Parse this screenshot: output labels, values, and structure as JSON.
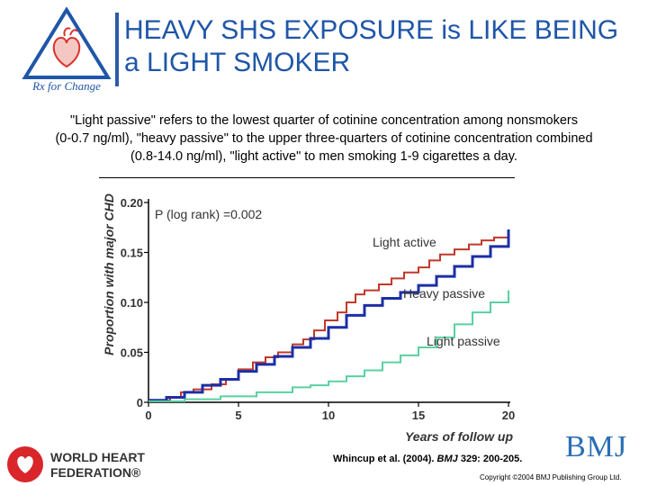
{
  "title": {
    "line1": "HEAVY SHS EXPOSURE is LIKE BEING",
    "line2": "a LIGHT SMOKER"
  },
  "logo": {
    "text": "Rx for Change",
    "icon": "heart-triangle-logo-icon",
    "color": "#1f56a8",
    "heart_color": "#d9342b"
  },
  "caption": {
    "line1": "\"Light passive\" refers to the lowest quarter of cotinine concentration among nonsmokers",
    "line2": "(0-0.7 ng/ml), \"heavy passive\" to the upper three-quarters of cotinine concentration combined",
    "line3": "(0.8-14.0 ng/ml), \"light active\" to men smoking 1-9 cigarettes a day."
  },
  "chart_data": {
    "type": "line",
    "xlabel": "Years of follow up",
    "ylabel": "Proportion with major CHD",
    "xlim": [
      0,
      20
    ],
    "ylim": [
      0,
      0.2
    ],
    "x_ticks": [
      "0",
      "5",
      "10",
      "15",
      "20"
    ],
    "y_ticks": [
      "0",
      "0.05",
      "0.10",
      "0.15",
      "0.20"
    ],
    "grid": false,
    "annotation": "P (log rank) =0.002",
    "series": [
      {
        "name": "Light active",
        "color": "#c0392b",
        "points": [
          [
            0,
            0.002
          ],
          [
            1.2,
            0.005
          ],
          [
            1.8,
            0.01
          ],
          [
            2.5,
            0.013
          ],
          [
            3.5,
            0.018
          ],
          [
            4.3,
            0.023
          ],
          [
            5,
            0.033
          ],
          [
            5.8,
            0.04
          ],
          [
            6.5,
            0.045
          ],
          [
            7.2,
            0.05
          ],
          [
            8,
            0.058
          ],
          [
            8.6,
            0.063
          ],
          [
            9.2,
            0.072
          ],
          [
            9.8,
            0.082
          ],
          [
            10.5,
            0.09
          ],
          [
            11,
            0.1
          ],
          [
            11.5,
            0.108
          ],
          [
            12,
            0.112
          ],
          [
            12.8,
            0.118
          ],
          [
            13.5,
            0.124
          ],
          [
            14.2,
            0.13
          ],
          [
            15,
            0.135
          ],
          [
            15.6,
            0.142
          ],
          [
            16.2,
            0.148
          ],
          [
            17,
            0.153
          ],
          [
            17.8,
            0.158
          ],
          [
            18.5,
            0.162
          ],
          [
            19.2,
            0.165
          ],
          [
            20,
            0.165
          ]
        ]
      },
      {
        "name": "Heavy passive",
        "color": "#1c2fa6",
        "points": [
          [
            0,
            0.002
          ],
          [
            1,
            0.005
          ],
          [
            2,
            0.01
          ],
          [
            3,
            0.017
          ],
          [
            4,
            0.023
          ],
          [
            5,
            0.031
          ],
          [
            6,
            0.038
          ],
          [
            7,
            0.046
          ],
          [
            8,
            0.055
          ],
          [
            9,
            0.064
          ],
          [
            10,
            0.075
          ],
          [
            11,
            0.087
          ],
          [
            12,
            0.097
          ],
          [
            13,
            0.104
          ],
          [
            14,
            0.11
          ],
          [
            15,
            0.117
          ],
          [
            16,
            0.126
          ],
          [
            17,
            0.136
          ],
          [
            18,
            0.146
          ],
          [
            19,
            0.156
          ],
          [
            20,
            0.173
          ]
        ]
      },
      {
        "name": "Light passive",
        "color": "#5ad1a0",
        "points": [
          [
            0,
            0.001
          ],
          [
            2,
            0.003
          ],
          [
            4,
            0.006
          ],
          [
            6,
            0.01
          ],
          [
            8,
            0.015
          ],
          [
            9,
            0.017
          ],
          [
            10,
            0.021
          ],
          [
            11,
            0.026
          ],
          [
            12,
            0.032
          ],
          [
            13,
            0.04
          ],
          [
            14,
            0.047
          ],
          [
            15,
            0.055
          ],
          [
            16,
            0.065
          ],
          [
            17,
            0.078
          ],
          [
            18,
            0.09
          ],
          [
            19,
            0.1
          ],
          [
            20,
            0.112
          ]
        ]
      }
    ]
  },
  "footer": {
    "whf_name_line1": "WORLD HEART",
    "whf_name_line2": "FEDERATION®",
    "whf_icon": "heart-circle-logo-icon",
    "citation_authors": "Whincup et al. (2004).",
    "citation_journal": "BMJ",
    "citation_ref": "329: 200-205.",
    "bmj_logo": "BMJ",
    "copyright": "Copyright ©2004 BMJ Publishing Group Ltd."
  }
}
